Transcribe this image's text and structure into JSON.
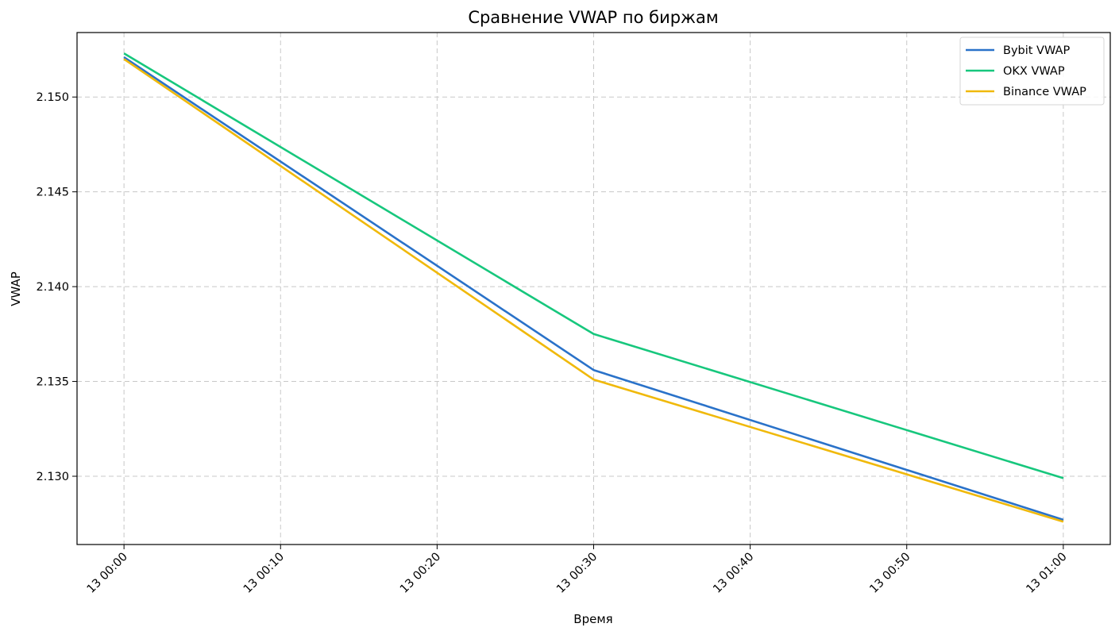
{
  "chart_data": {
    "type": "line",
    "title": "Сравнение VWAP по биржам",
    "xlabel": "Время",
    "ylabel": "VWAP",
    "x": [
      "13 00:00",
      "13 00:10",
      "13 00:20",
      "13 00:30",
      "13 00:40",
      "13 00:50",
      "13 01:00"
    ],
    "x_minutes": [
      0,
      10,
      20,
      30,
      40,
      50,
      60
    ],
    "ylim": [
      2.1264,
      2.1534
    ],
    "xlim_minutes": [
      -3,
      63
    ],
    "y_ticks": [
      "2.130",
      "2.135",
      "2.140",
      "2.145",
      "2.150"
    ],
    "y_tick_values": [
      2.13,
      2.135,
      2.14,
      2.145,
      2.15
    ],
    "grid": true,
    "legend_position": "top-right",
    "series": [
      {
        "name": "Bybit VWAP",
        "color": "#2a72c9",
        "points": [
          [
            0,
            2.1521
          ],
          [
            30,
            2.1356
          ],
          [
            60,
            2.1277
          ]
        ]
      },
      {
        "name": "OKX VWAP",
        "color": "#17c77d",
        "points": [
          [
            0,
            2.1523
          ],
          [
            30,
            2.1375
          ],
          [
            60,
            2.1299
          ]
        ]
      },
      {
        "name": "Binance VWAP",
        "color": "#f0b90b",
        "points": [
          [
            0,
            2.152
          ],
          [
            30,
            2.1351
          ],
          [
            60,
            2.1276
          ]
        ]
      }
    ]
  }
}
